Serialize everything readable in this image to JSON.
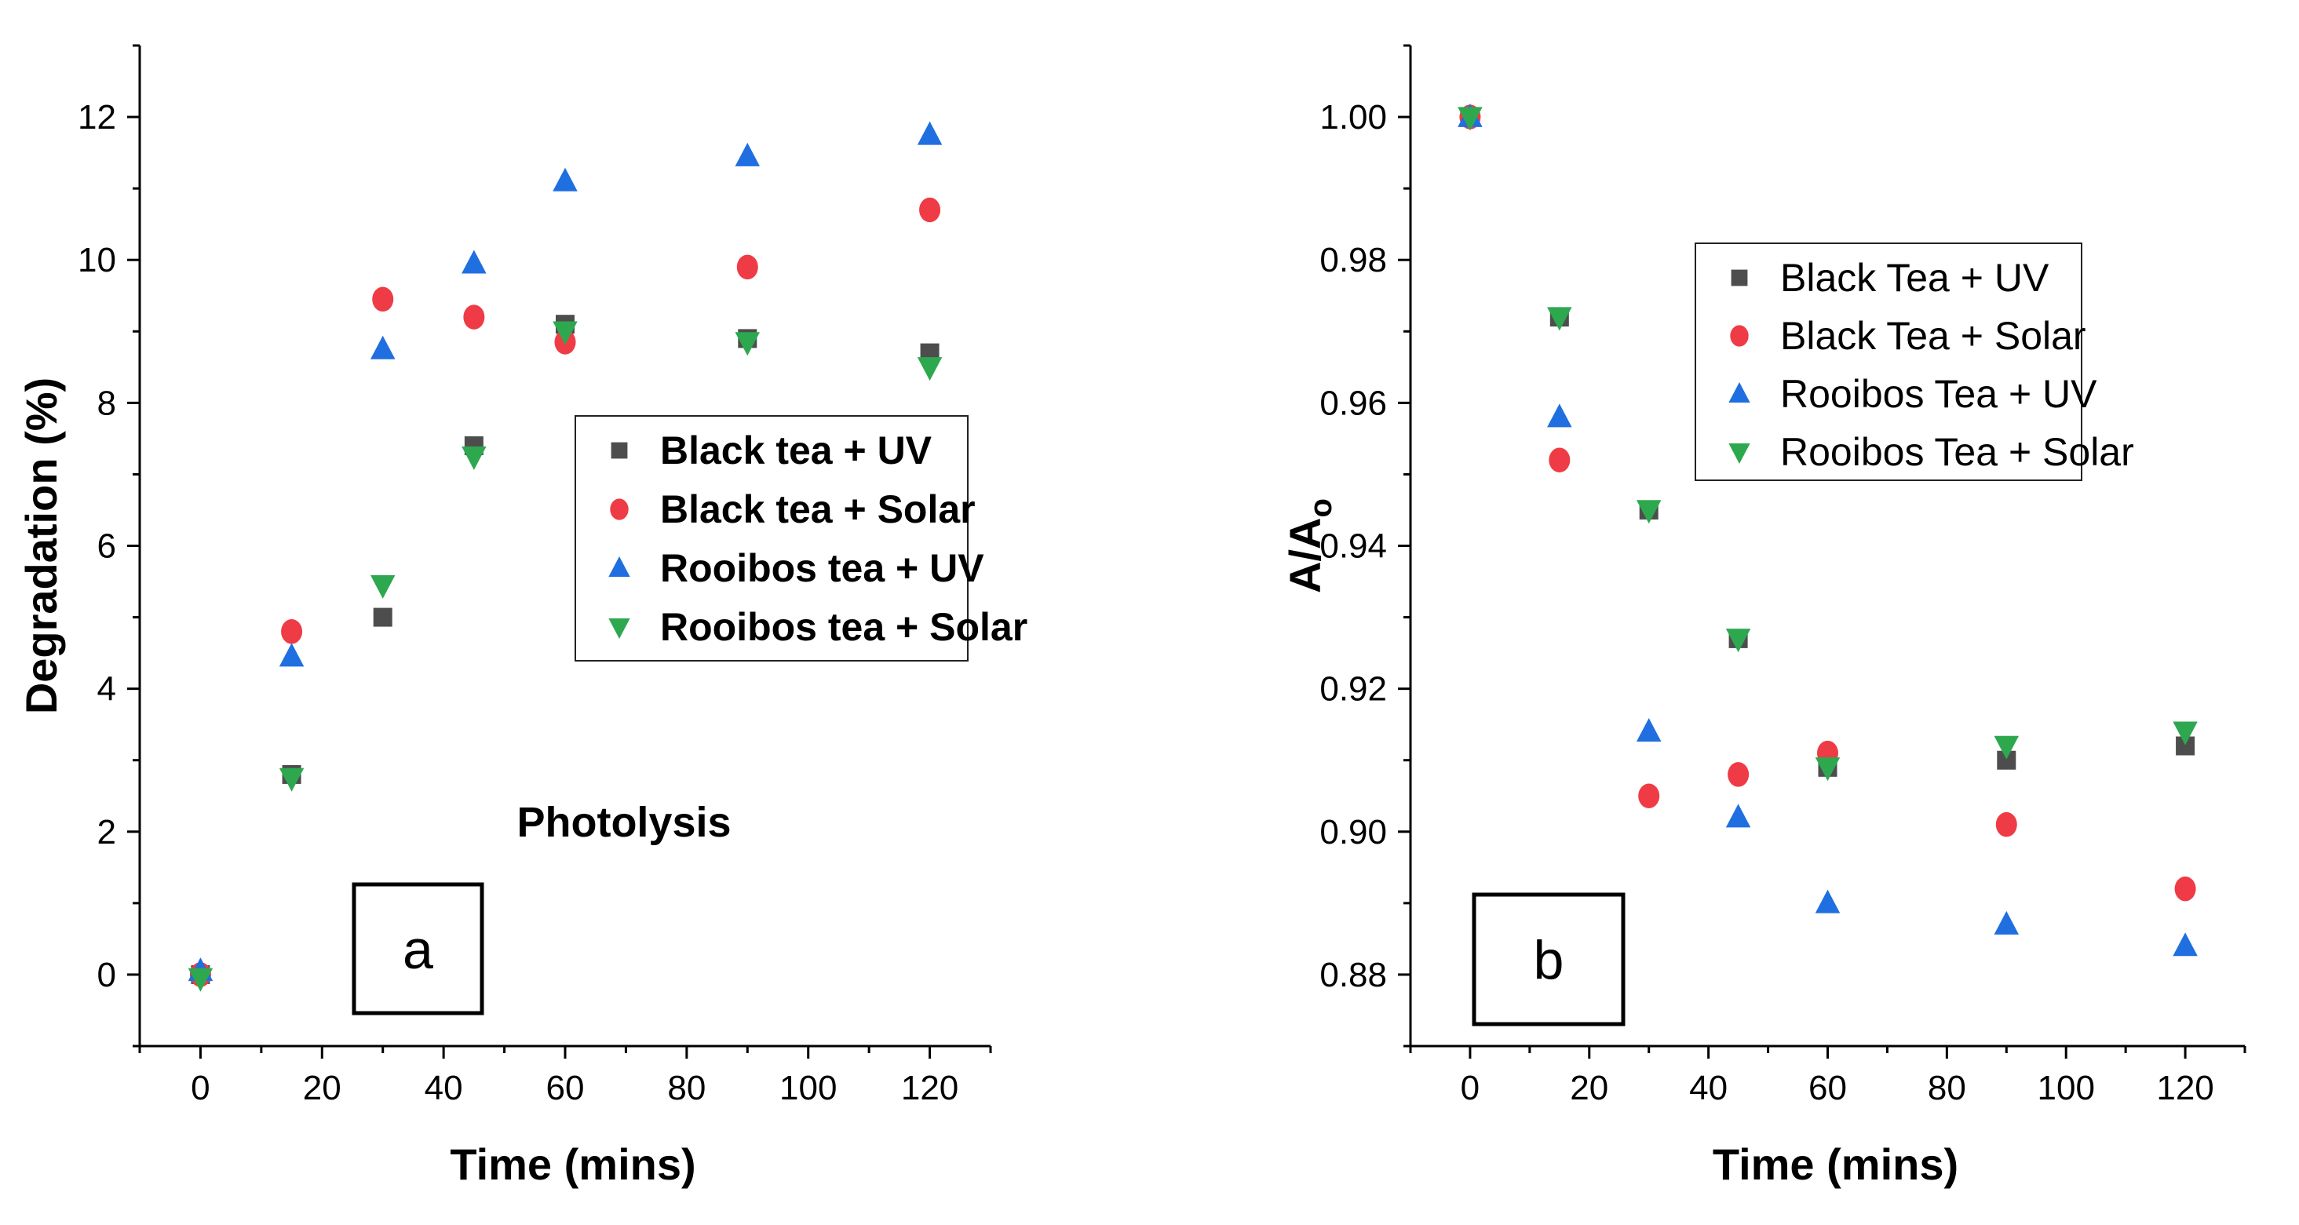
{
  "colors": {
    "Black tea + UV": "#4d4d4d",
    "Black tea + Solar": "#ef3b45",
    "Rooibos tea + UV": "#1f6fe0",
    "Rooibos tea + Solar": "#2ea84f"
  },
  "chart_data": [
    {
      "type": "scatter",
      "panel_label": "a",
      "annotation": "Photolysis",
      "xlabel": "Time (mins)",
      "ylabel": "Degradation (%)",
      "xlim": [
        -10,
        130
      ],
      "ylim": [
        -1,
        13
      ],
      "x_ticks": [
        0,
        20,
        40,
        60,
        80,
        100,
        120
      ],
      "y_ticks": [
        0,
        2,
        4,
        6,
        8,
        10,
        12
      ],
      "grid": false,
      "legend_position": "center-right",
      "series": [
        {
          "name": "Black tea + UV",
          "marker": "square",
          "x": [
            0,
            15,
            30,
            45,
            60,
            90,
            120
          ],
          "y": [
            0,
            2.8,
            5.0,
            7.4,
            9.1,
            8.9,
            8.7
          ]
        },
        {
          "name": "Black tea + Solar",
          "marker": "circle",
          "x": [
            0,
            15,
            30,
            45,
            60,
            90,
            120
          ],
          "y": [
            0,
            4.8,
            9.45,
            9.2,
            8.85,
            9.9,
            10.7
          ]
        },
        {
          "name": "Rooibos tea + UV",
          "marker": "triangle-up",
          "x": [
            0,
            15,
            30,
            45,
            60,
            90,
            120
          ],
          "y": [
            0.05,
            4.45,
            8.75,
            9.95,
            11.1,
            11.45,
            11.75
          ]
        },
        {
          "name": "Rooibos tea + Solar",
          "marker": "triangle-down",
          "x": [
            0,
            15,
            30,
            45,
            60,
            90,
            120
          ],
          "y": [
            -0.05,
            2.75,
            5.45,
            7.25,
            9.0,
            8.85,
            8.5
          ]
        }
      ]
    },
    {
      "type": "scatter",
      "panel_label": "b",
      "xlabel": "Time (mins)",
      "ylabel": "A/A",
      "ylabel_subscript": "o",
      "xlim": [
        -10,
        130
      ],
      "ylim": [
        0.87,
        1.01
      ],
      "x_ticks": [
        0,
        20,
        40,
        60,
        80,
        100,
        120
      ],
      "y_ticks": [
        "0.88",
        "0.90",
        "0.92",
        "0.94",
        "0.96",
        "0.98",
        "1.00"
      ],
      "grid": false,
      "legend_position": "top-right",
      "series": [
        {
          "name": "Black Tea + UV",
          "marker": "square",
          "x": [
            0,
            15,
            30,
            45,
            60,
            90,
            120
          ],
          "y": [
            1.0,
            0.972,
            0.945,
            0.927,
            0.909,
            0.91,
            0.912
          ]
        },
        {
          "name": "Black Tea + Solar",
          "marker": "circle",
          "x": [
            0,
            15,
            30,
            45,
            60,
            90,
            120
          ],
          "y": [
            1.0,
            0.952,
            0.905,
            0.908,
            0.911,
            0.901,
            0.892
          ]
        },
        {
          "name": "Rooibos Tea + UV",
          "marker": "triangle-up",
          "x": [
            0,
            15,
            30,
            45,
            60,
            90,
            120
          ],
          "y": [
            1.0,
            0.958,
            0.914,
            0.902,
            0.89,
            0.887,
            0.884
          ]
        },
        {
          "name": "Rooibos Tea + Solar",
          "marker": "triangle-down",
          "x": [
            0,
            15,
            30,
            45,
            60,
            90,
            120
          ],
          "y": [
            1.0,
            0.972,
            0.945,
            0.927,
            0.909,
            0.912,
            0.914
          ]
        }
      ]
    }
  ]
}
